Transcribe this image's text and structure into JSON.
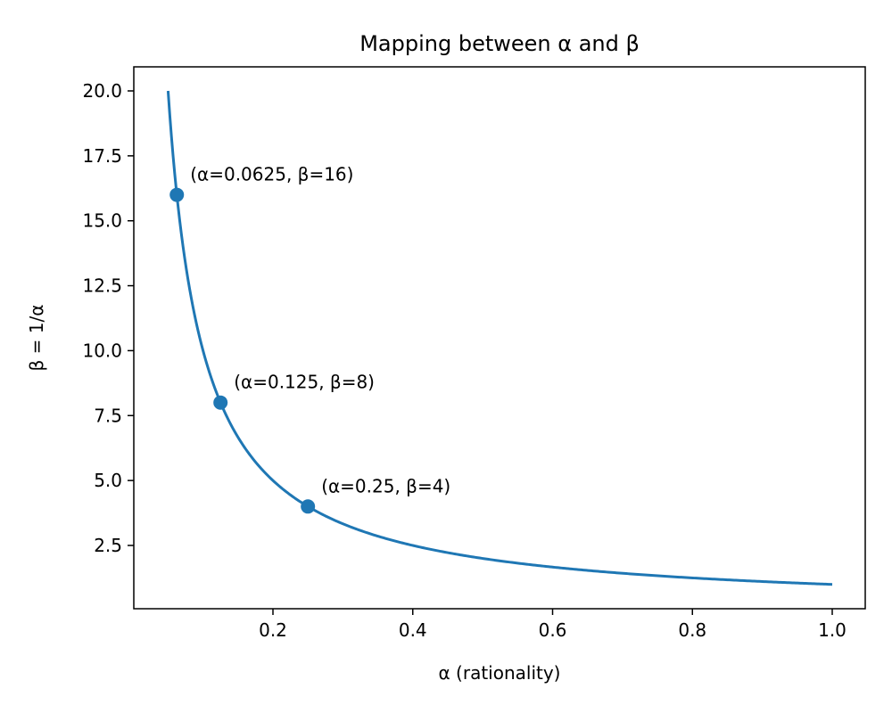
{
  "chart_data": {
    "type": "line",
    "title": "Mapping between α and β",
    "xlabel": "α (rationality)",
    "ylabel": "β = 1/α",
    "xlim": [
      -0.0,
      1.0
    ],
    "ylim": [
      0.0,
      21.0
    ],
    "xticks": [
      0.2,
      0.4,
      0.6,
      0.8,
      1.0
    ],
    "xtick_labels": [
      "0.2",
      "0.4",
      "0.6",
      "0.8",
      "1.0"
    ],
    "yticks": [
      2.5,
      5.0,
      7.5,
      10.0,
      12.5,
      15.0,
      17.5,
      20.0
    ],
    "ytick_labels": [
      "2.5",
      "5.0",
      "7.5",
      "10.0",
      "12.5",
      "15.0",
      "17.5",
      "20.0"
    ],
    "grid": false,
    "line_color": "#1f77b4",
    "curve": {
      "x_start": 0.05,
      "x_end": 1.0
    },
    "points": [
      {
        "x": 0.0625,
        "y": 16,
        "label": "(α=0.0625, β=16)"
      },
      {
        "x": 0.125,
        "y": 8,
        "label": "(α=0.125, β=8)"
      },
      {
        "x": 0.25,
        "y": 4,
        "label": "(α=0.25, β=4)"
      }
    ]
  }
}
